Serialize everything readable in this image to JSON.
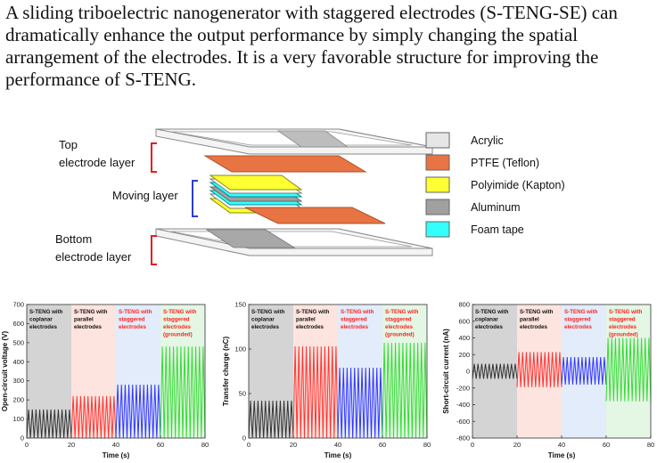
{
  "abstract": "A sliding triboelectric nanogenerator with staggered electrodes (S-TENG-SE) can dramatically enhance the output performance by simply changing the spatial arrangement of the electrodes. It is a very favorable structure for improving the performance of S-TENG.",
  "schematic": {
    "labels": {
      "top_line1": "Top",
      "top_line2": "electrode layer",
      "moving": "Moving layer",
      "bottom_line1": "Bottom",
      "bottom_line2": "electrode layer"
    },
    "legend": [
      {
        "name": "Acrylic",
        "color": "#e6e6e6"
      },
      {
        "name": "PTFE (Teflon)",
        "color": "#e87443"
      },
      {
        "name": "Polyimide (Kapton)",
        "color": "#ffff33"
      },
      {
        "name": "Aluminum",
        "color": "#a0a0a0"
      },
      {
        "name": "Foam tape",
        "color": "#33ffff"
      }
    ]
  },
  "chart_data": [
    {
      "type": "line",
      "ylabel": "Open-circuit voltage (V)",
      "xlabel": "Time (s)",
      "xlim": [
        0,
        80
      ],
      "ylim": [
        0,
        700
      ],
      "xticks": [
        "0",
        "20",
        "40",
        "60",
        "80"
      ],
      "yticks": [
        "0",
        "100",
        "200",
        "300",
        "400",
        "500",
        "600",
        "700"
      ],
      "series": [
        {
          "name": "S-TENG with coplanar electrodes",
          "x_range": [
            0,
            20
          ],
          "min": 0,
          "max": 150,
          "color": "#333333"
        },
        {
          "name": "S-TENG with parallel electrodes",
          "x_range": [
            20,
            40
          ],
          "min": 0,
          "max": 220,
          "color": "#ff3333"
        },
        {
          "name": "S-TENG with staggered electrodes",
          "x_range": [
            40,
            60
          ],
          "min": 0,
          "max": 280,
          "color": "#3333ff"
        },
        {
          "name": "S-TENG with staggered electrodes (grounded)",
          "x_range": [
            60,
            80
          ],
          "min": 0,
          "max": 480,
          "color": "#33dd33"
        }
      ]
    },
    {
      "type": "line",
      "ylabel": "Transfer charge (nC)",
      "xlabel": "Time (s)",
      "xlim": [
        0,
        80
      ],
      "ylim": [
        0,
        150
      ],
      "xticks": [
        "0",
        "20",
        "40",
        "60",
        "80"
      ],
      "yticks": [
        "0",
        "50",
        "100",
        "150"
      ],
      "series": [
        {
          "name": "S-TENG with coplanar electrodes",
          "x_range": [
            0,
            20
          ],
          "min": 0,
          "max": 42,
          "color": "#333333"
        },
        {
          "name": "S-TENG with parallel electrodes",
          "x_range": [
            20,
            40
          ],
          "min": 0,
          "max": 103,
          "color": "#ff3333"
        },
        {
          "name": "S-TENG with staggered electrodes",
          "x_range": [
            40,
            60
          ],
          "min": 0,
          "max": 79,
          "color": "#3333ff"
        },
        {
          "name": "S-TENG with staggered electrodes (grounded)",
          "x_range": [
            60,
            80
          ],
          "min": 0,
          "max": 107,
          "color": "#33dd33"
        }
      ]
    },
    {
      "type": "line",
      "ylabel": "Short-circuit current (nA)",
      "xlabel": "Time (s)",
      "xlim": [
        0,
        80
      ],
      "ylim": [
        -800,
        800
      ],
      "xticks": [
        "0",
        "20",
        "40",
        "60",
        "80"
      ],
      "yticks": [
        "-800",
        "-600",
        "-400",
        "-200",
        "0",
        "200",
        "400",
        "600",
        "800"
      ],
      "series": [
        {
          "name": "S-TENG with coplanar electrodes",
          "x_range": [
            0,
            20
          ],
          "min": -90,
          "max": 90,
          "color": "#333333"
        },
        {
          "name": "S-TENG with parallel electrodes",
          "x_range": [
            20,
            40
          ],
          "min": -190,
          "max": 230,
          "color": "#ff3333"
        },
        {
          "name": "S-TENG with staggered electrodes",
          "x_range": [
            40,
            60
          ],
          "min": -160,
          "max": 170,
          "color": "#3333ff"
        },
        {
          "name": "S-TENG with staggered electrodes (grounded)",
          "x_range": [
            60,
            80
          ],
          "min": -360,
          "max": 400,
          "color": "#33dd33"
        }
      ]
    }
  ],
  "region_labels": [
    {
      "lines": [
        "S-TENG with",
        "coplanar",
        "electrodes"
      ],
      "color": "#111111",
      "bg": "#d4d4d4"
    },
    {
      "lines": [
        "S-TENG with",
        "parallel",
        "electrodes"
      ],
      "color": "#111111",
      "bg": "#fde4de"
    },
    {
      "lines": [
        "S-TENG with",
        "staggered",
        "electrodes"
      ],
      "color": "#ff2222",
      "bg": "#e2ecfa"
    },
    {
      "lines": [
        "S-TENG with",
        "staggered",
        "electrodes",
        "(grounded)"
      ],
      "color": "#ff2222",
      "bg": "#e4f6e4"
    }
  ]
}
